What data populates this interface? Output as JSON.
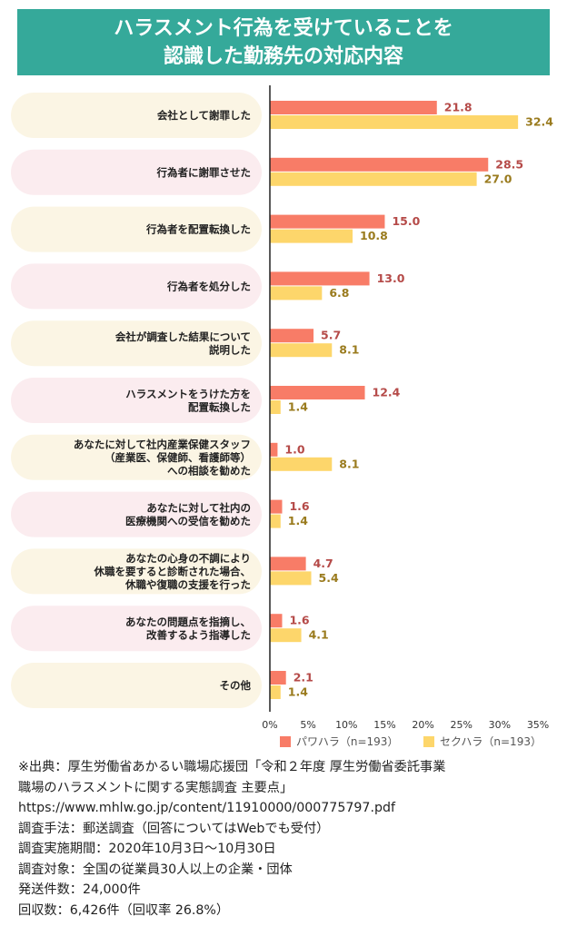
{
  "header": {
    "title_line1": "ハラスメント行為を受けていることを",
    "title_line2": "認識した勤務先の対応内容"
  },
  "colors": {
    "power": "#f87c67",
    "sexual": "#fdd66b",
    "power_text": "#b54a48",
    "sexual_text": "#9a7b1e",
    "pill_cream": "#fbf5e4",
    "pill_pink": "#fbecef",
    "banner": "#35a99a"
  },
  "chart_data": {
    "type": "bar",
    "orientation": "horizontal",
    "categories": [
      "会社として謝罪した",
      "行為者に謝罪させた",
      "行為者を配置転換した",
      "行為者を処分した",
      "会社が調査した結果について\n説明した",
      "ハラスメントをうけた方を\n配置転換した",
      "あなたに対して社内産業保健スタッフ\n（産業医、保健師、看護師等）\nへの相談を勧めた",
      "あなたに対して社内の\n医療機関への受信を勧めた",
      "あなたの心身の不調により\n休職を要すると診断された場合、\n休職や復職の支援を行った",
      "あなたの問題点を指摘し、\n改善するよう指導した",
      "その他"
    ],
    "series": [
      {
        "name": "パワハラ（n=193）",
        "values": [
          21.8,
          28.5,
          15.0,
          13.0,
          5.7,
          12.4,
          1.0,
          1.6,
          4.7,
          1.6,
          2.1
        ],
        "labels": [
          "21.8",
          "28.5",
          "15.0",
          "13.0",
          "5.7",
          "12.4",
          "1.0",
          "1.6",
          "4.7",
          "1.6",
          "2.1"
        ]
      },
      {
        "name": "セクハラ（n=193）",
        "values": [
          32.4,
          27.0,
          10.8,
          6.8,
          8.1,
          1.4,
          8.1,
          1.4,
          5.4,
          4.1,
          1.4
        ],
        "labels": [
          "32.4",
          "27.0",
          "10.8",
          "6.8",
          "8.1",
          "1.4",
          "8.1",
          "1.4",
          "5.4",
          "4.1",
          "1.4"
        ]
      }
    ],
    "xlim": [
      0,
      35
    ],
    "xticks": [
      "0%",
      "5%",
      "10%",
      "15%",
      "20%",
      "25%",
      "30%",
      "35%"
    ],
    "legend": "bottom"
  },
  "notes": {
    "source_line1": "※出典：厚生労働省あかるい職場応援団「令和２年度 厚生労働省委託事業",
    "source_line2": "職場のハラスメントに関する実態調査 主要点」",
    "url": "https://www.mhlw.go.jp/content/11910000/000775797.pdf",
    "method": "調査手法：郵送調査（回答についてはWebでも受付）",
    "period": "調査実施期間：2020年10月3日～10月30日",
    "target": "調査対象：全国の従業員30人以上の企業・団体",
    "sent": "発送件数：24,000件",
    "collected": "回収数：6,426件（回収率 26.8%）"
  }
}
